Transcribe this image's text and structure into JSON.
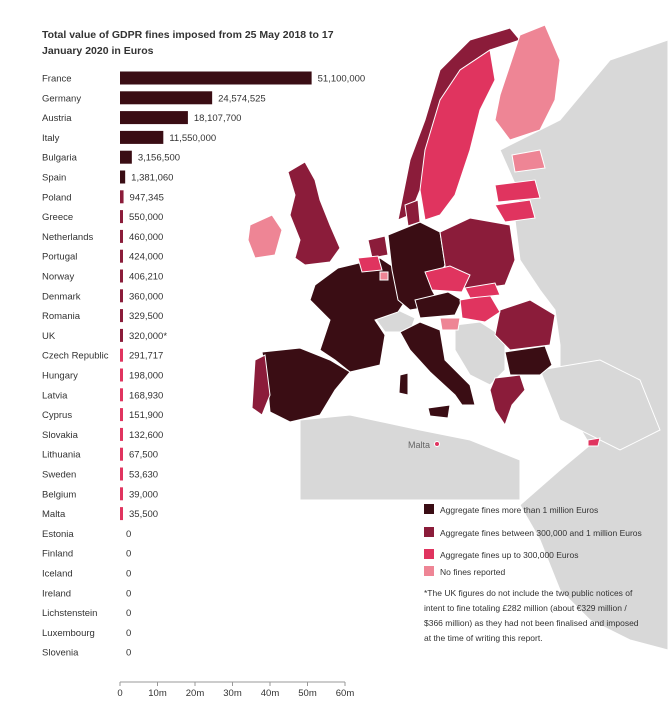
{
  "chart_data": {
    "type": "bar",
    "orientation": "horizontal",
    "title": "Total value of GDPR fines imposed from 25 May 2018 to 17 January 2020 in Euros",
    "categories": [
      "France",
      "Germany",
      "Austria",
      "Italy",
      "Bulgaria",
      "Spain",
      "Poland",
      "Greece",
      "Netherlands",
      "Portugal",
      "Norway",
      "Denmark",
      "Romania",
      "UK",
      "Czech Republic",
      "Hungary",
      "Latvia",
      "Cyprus",
      "Slovakia",
      "Lithuania",
      "Sweden",
      "Belgium",
      "Malta",
      "Estonia",
      "Finland",
      "Iceland",
      "Ireland",
      "Lichstenstein",
      "Luxembourg",
      "Slovenia"
    ],
    "values": [
      51100000,
      24574525,
      18107700,
      11550000,
      3156500,
      1381060,
      947345,
      550000,
      460000,
      424000,
      406210,
      360000,
      329500,
      320000,
      291717,
      198000,
      168930,
      151900,
      132600,
      67500,
      53630,
      39000,
      35500,
      0,
      0,
      0,
      0,
      0,
      0,
      0
    ],
    "value_labels": [
      "51,100,000",
      "24,574,525",
      "18,107,700",
      "11,550,000",
      "3,156,500",
      "1,381,060",
      "947,345",
      "550,000",
      "460,000",
      "424,000",
      "406,210",
      "360,000",
      "329,500",
      "320,000*",
      "291,717",
      "198,000",
      "168,930",
      "151,900",
      "132,600",
      "67,500",
      "53,630",
      "39,000",
      "35,500",
      "0",
      "0",
      "0",
      "0",
      "0",
      "0",
      "0"
    ],
    "xlim": [
      0,
      60000000
    ],
    "x_ticks": [
      0,
      10000000,
      20000000,
      30000000,
      40000000,
      50000000,
      60000000
    ],
    "x_tick_labels": [
      "0",
      "10m",
      "20m",
      "30m",
      "40m",
      "50m",
      "60m"
    ],
    "grid": false,
    "color_scale": [
      {
        "label": "Aggregate fines more than 1 million Euros",
        "color": "#3a0d14"
      },
      {
        "label": "Aggregate fines between 300,000 and 1 million Euros",
        "color": "#8b1c3a"
      },
      {
        "label": "Aggregate fines up to 300,000 Euros",
        "color": "#e0345f"
      },
      {
        "label": "No fines reported",
        "color": "#ee8595"
      }
    ]
  },
  "legend": [
    {
      "label": "Aggregate fines more than 1 million Euros",
      "color": "#3a0d14"
    },
    {
      "label": "Aggregate fines between 300,000 and 1 million Euros",
      "color": "#8b1c3a"
    },
    {
      "label": "Aggregate fines up to 300,000 Euros",
      "color": "#e0345f"
    },
    {
      "label": "No fines reported",
      "color": "#ee8595"
    }
  ],
  "footnote": "*The UK figures do not include the two public notices of intent to fine totaling £282 million (about €329 million / $366 million) as they had not been finalised and imposed at the time of writing this report.",
  "map": {
    "malta_label": "Malta",
    "non_eea_color": "#d8d8d8",
    "border_color": "#ffffff"
  }
}
